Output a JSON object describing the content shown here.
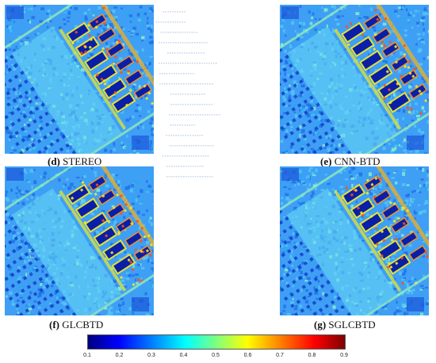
{
  "panels": [
    {
      "id": "d",
      "letter": "(d)",
      "label": "STEREO"
    },
    {
      "id": "e",
      "letter": "(e)",
      "label": "CNN-BTD"
    },
    {
      "id": "f",
      "letter": "(f)",
      "label": "GLCBTD"
    },
    {
      "id": "g",
      "letter": "(g)",
      "label": "SGLCBTD"
    }
  ],
  "colorbar": {
    "ticks": [
      "0.1",
      "0.2",
      "0.3",
      "0.4",
      "0.5",
      "0.6",
      "0.7",
      "0.8",
      "0.9"
    ],
    "colormap": "jet",
    "colors": [
      "#00007f",
      "#0000ff",
      "#007fff",
      "#00ffff",
      "#7fff7f",
      "#ffff00",
      "#ff7f00",
      "#ff0000",
      "#7f0000"
    ]
  }
}
